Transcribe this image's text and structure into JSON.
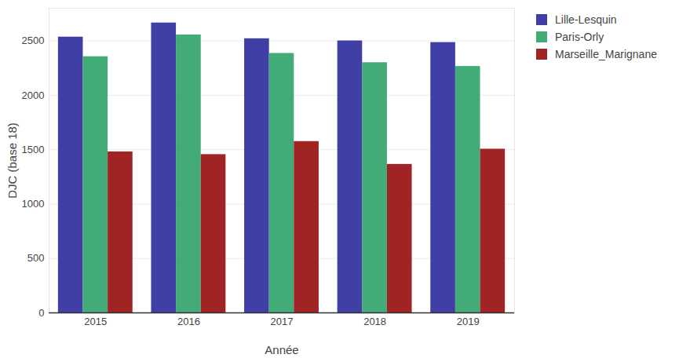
{
  "chart_data": {
    "type": "bar",
    "x_label": "Année",
    "y_label": "DJC (base 18)",
    "categories": [
      "2015",
      "2016",
      "2017",
      "2018",
      "2019"
    ],
    "series": [
      {
        "name": "Lille-Lesquin",
        "color": "#3f3fa5",
        "values": [
          2535,
          2665,
          2520,
          2500,
          2485
        ]
      },
      {
        "name": "Paris-Orly",
        "color": "#42ab78",
        "values": [
          2355,
          2555,
          2385,
          2300,
          2265
        ]
      },
      {
        "name": "Marseille_Marignane",
        "color": "#a02424",
        "values": [
          1480,
          1455,
          1575,
          1365,
          1505
        ]
      }
    ],
    "ylim": [
      0,
      2800
    ],
    "yticks": [
      0,
      500,
      1000,
      1500,
      2000,
      2500
    ],
    "grid": true,
    "legend": "top-right"
  }
}
